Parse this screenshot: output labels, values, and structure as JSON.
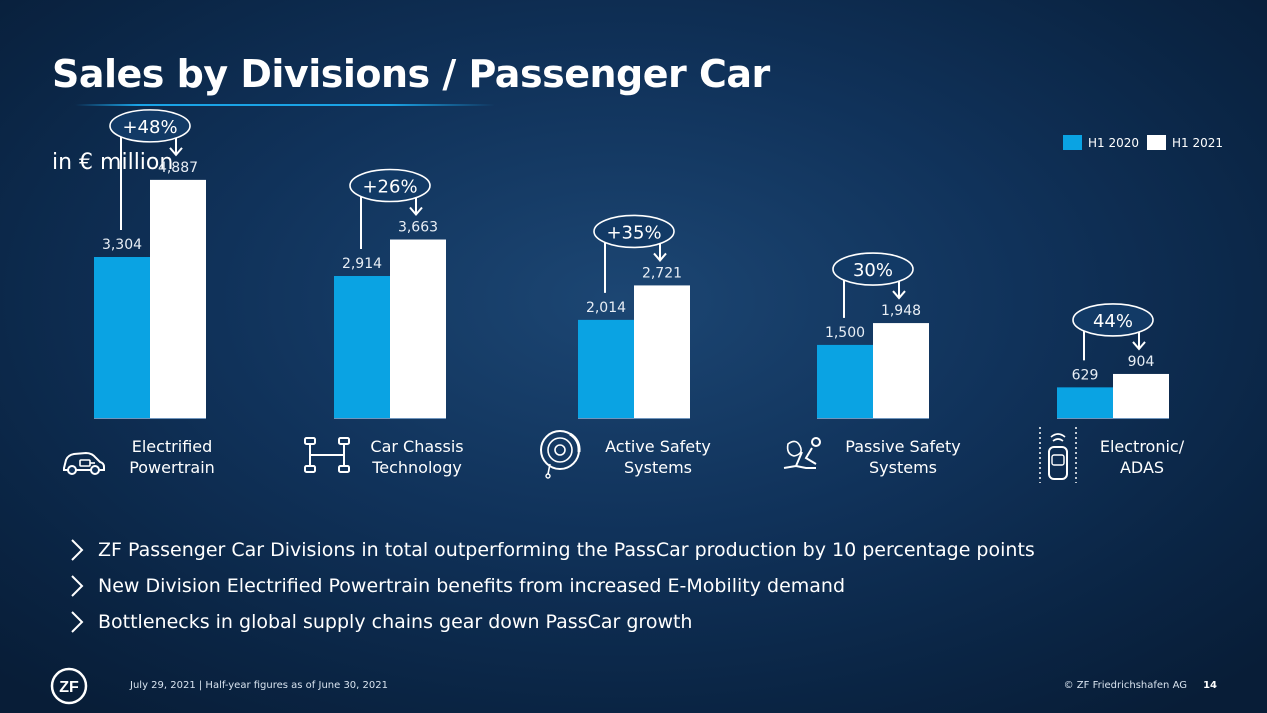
{
  "header": {
    "title": "Sales by Divisions / Passenger Car",
    "unit": "in € million"
  },
  "legend": [
    {
      "label": "H1 2020",
      "color": "#0aa3e3"
    },
    {
      "label": "H1 2021",
      "color": "#ffffff"
    }
  ],
  "chart_data": {
    "type": "bar",
    "categories": [
      "Electrified Powertrain",
      "Car Chassis Technology",
      "Active Safety Systems",
      "Passive Safety Systems",
      "Electronic/ ADAS"
    ],
    "category_lines": [
      [
        "Electrified",
        "Powertrain"
      ],
      [
        "Car Chassis",
        "Technology"
      ],
      [
        "Active Safety",
        "Systems"
      ],
      [
        "Passive Safety",
        "Systems"
      ],
      [
        "Electronic/",
        "ADAS"
      ]
    ],
    "category_icons": [
      "electric-car-icon",
      "chassis-icon",
      "brake-disc-icon",
      "airbag-seat-icon",
      "adas-car-icon"
    ],
    "series": [
      {
        "name": "H1 2020",
        "color": "#0aa3e3",
        "values": [
          3304,
          2914,
          2014,
          1500,
          629
        ],
        "labels": [
          "3,304",
          "2,914",
          "2,014",
          "1,500",
          "629"
        ]
      },
      {
        "name": "H1 2021",
        "color": "#ffffff",
        "values": [
          4887,
          3663,
          2721,
          1948,
          904
        ],
        "labels": [
          "4,887",
          "3,663",
          "2,721",
          "1,948",
          "904"
        ]
      }
    ],
    "growth_labels": [
      "+48%",
      "+26%",
      "+35%",
      "30%",
      "44%"
    ],
    "ylim": [
      0,
      5500
    ]
  },
  "bullets": [
    "ZF Passenger Car Divisions in total outperforming the PassCar production by 10 percentage points",
    "New Division Electrified Powertrain benefits from increased E-Mobility demand",
    "Bottlenecks in global supply chains gear down PassCar growth"
  ],
  "footer": {
    "logo_text": "ZF",
    "date_note": "July 29, 2021 | Half-year figures as of June 30, 2021",
    "copyright": "© ZF Friedrichshafen AG",
    "page_number": "14"
  }
}
